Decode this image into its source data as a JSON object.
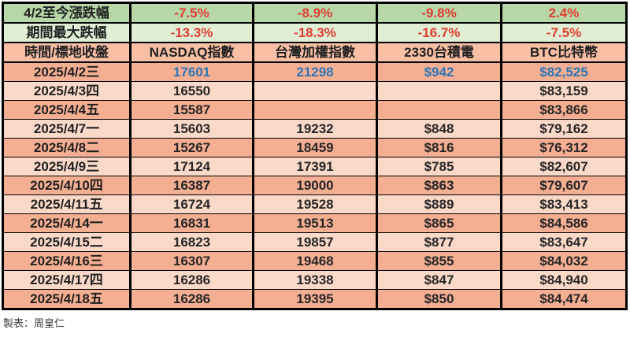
{
  "colors": {
    "summary_green_dark": "#b7d7a8",
    "summary_green_light": "#dfeed5",
    "header_salmon": "#f8bfa5",
    "row_salmon_dark": "#f4ae92",
    "row_salmon_light": "#fbd9c9",
    "negative_red": "#e23d32",
    "highlight_blue": "#2e75b6",
    "text_dark": "#262626",
    "border_black": "#000000"
  },
  "chart_data": {
    "type": "table",
    "columns": [
      "時間/標地收盤",
      "NASDAQ指數",
      "台灣加權指數",
      "2330台積電",
      "BTC比特幣"
    ],
    "summary_rows": [
      {
        "label": "4/2至今漲跌幅",
        "values": [
          "-7.5%",
          "-8.9%",
          "-9.8%",
          "2.4%"
        ]
      },
      {
        "label": "期間最大跌幅",
        "values": [
          "-13.3%",
          "-18.3%",
          "-16.7%",
          "-7.5%"
        ]
      }
    ],
    "rows": [
      {
        "date": "2025/4/2三",
        "nasdaq": "17601",
        "twse": "21298",
        "tsmc": "$942",
        "btc": "$82,525",
        "highlight": true
      },
      {
        "date": "2025/4/3四",
        "nasdaq": "16550",
        "twse": "",
        "tsmc": "",
        "btc": "$83,159"
      },
      {
        "date": "2025/4/4五",
        "nasdaq": "15587",
        "twse": "",
        "tsmc": "",
        "btc": "$83,866"
      },
      {
        "date": "2025/4/7一",
        "nasdaq": "15603",
        "twse": "19232",
        "tsmc": "$848",
        "btc": "$79,162"
      },
      {
        "date": "2025/4/8二",
        "nasdaq": "15267",
        "twse": "18459",
        "tsmc": "$816",
        "btc": "$76,312"
      },
      {
        "date": "2025/4/9三",
        "nasdaq": "17124",
        "twse": "17391",
        "tsmc": "$785",
        "btc": "$82,607"
      },
      {
        "date": "2025/4/10四",
        "nasdaq": "16387",
        "twse": "19000",
        "tsmc": "$863",
        "btc": "$79,607"
      },
      {
        "date": "2025/4/11五",
        "nasdaq": "16724",
        "twse": "19528",
        "tsmc": "$889",
        "btc": "$83,413"
      },
      {
        "date": "2025/4/14一",
        "nasdaq": "16831",
        "twse": "19513",
        "tsmc": "$865",
        "btc": "$84,586"
      },
      {
        "date": "2025/4/15二",
        "nasdaq": "16823",
        "twse": "19857",
        "tsmc": "$877",
        "btc": "$83,647"
      },
      {
        "date": "2025/4/16三",
        "nasdaq": "16307",
        "twse": "19468",
        "tsmc": "$855",
        "btc": "$84,032"
      },
      {
        "date": "2025/4/17四",
        "nasdaq": "16286",
        "twse": "19338",
        "tsmc": "$847",
        "btc": "$84,940"
      },
      {
        "date": "2025/4/18五",
        "nasdaq": "16286",
        "twse": "19395",
        "tsmc": "$850",
        "btc": "$84,474"
      }
    ]
  },
  "footer": {
    "credit": "製表：周皇仁"
  }
}
